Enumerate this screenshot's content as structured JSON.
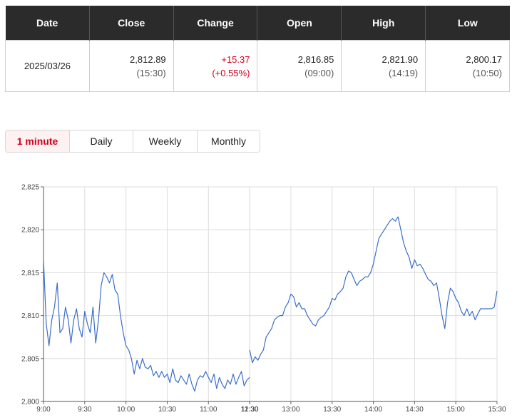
{
  "table": {
    "headers": [
      "Date",
      "Close",
      "Change",
      "Open",
      "High",
      "Low"
    ],
    "row": {
      "date": "2025/03/26",
      "close": "2,812.89",
      "close_time": "(15:30)",
      "change": "+15.37",
      "change_pct": "(+0.55%)",
      "open": "2,816.85",
      "open_time": "(09:00)",
      "high": "2,821.90",
      "high_time": "(14:19)",
      "low": "2,800.17",
      "low_time": "(10:50)"
    }
  },
  "tabs": [
    {
      "label": "1 minute",
      "active": true
    },
    {
      "label": "Daily",
      "active": false
    },
    {
      "label": "Weekly",
      "active": false
    },
    {
      "label": "Monthly",
      "active": false
    }
  ],
  "colors": {
    "accent": "#d6001c",
    "line": "#3b6fc9",
    "header_bg": "#2b2b2b",
    "grid": "#dddddd"
  },
  "chart_data": {
    "type": "line",
    "title": "",
    "xlabel": "",
    "ylabel": "",
    "x_ticks": [
      "9:00",
      "9:30",
      "10:00",
      "10:30",
      "11:00",
      "11:30",
      "12:30",
      "13:00",
      "13:30",
      "14:00",
      "14:30",
      "15:00",
      "15:30"
    ],
    "y_ticks": [
      "2,800",
      "2,805",
      "2,810",
      "2,815",
      "2,820",
      "2,825"
    ],
    "ylim": [
      2800,
      2825
    ],
    "grid": true,
    "legend": "none",
    "lunch_break": [
      "11:30",
      "12:30"
    ],
    "series": [
      {
        "points": [
          [
            "9:00",
            2816.5
          ],
          [
            "9:02",
            2809.0
          ],
          [
            "9:04",
            2806.5
          ],
          [
            "9:06",
            2809.5
          ],
          [
            "9:08",
            2811.0
          ],
          [
            "9:10",
            2813.8
          ],
          [
            "9:12",
            2808.0
          ],
          [
            "9:14",
            2808.5
          ],
          [
            "9:16",
            2811.0
          ],
          [
            "9:18",
            2809.5
          ],
          [
            "9:20",
            2806.8
          ],
          [
            "9:22",
            2809.5
          ],
          [
            "9:24",
            2810.8
          ],
          [
            "9:26",
            2808.5
          ],
          [
            "9:28",
            2807.5
          ],
          [
            "9:30",
            2810.5
          ],
          [
            "9:32",
            2809.0
          ],
          [
            "9:34",
            2808.0
          ],
          [
            "9:36",
            2811.0
          ],
          [
            "9:38",
            2806.8
          ],
          [
            "9:40",
            2809.5
          ],
          [
            "9:42",
            2813.5
          ],
          [
            "9:44",
            2815.0
          ],
          [
            "9:46",
            2814.5
          ],
          [
            "9:48",
            2813.8
          ],
          [
            "9:50",
            2814.8
          ],
          [
            "9:52",
            2813.0
          ],
          [
            "9:54",
            2812.5
          ],
          [
            "9:56",
            2810.0
          ],
          [
            "9:58",
            2808.0
          ],
          [
            "10:00",
            2806.5
          ],
          [
            "10:02",
            2806.0
          ],
          [
            "10:04",
            2805.0
          ],
          [
            "10:06",
            2803.2
          ],
          [
            "10:08",
            2804.8
          ],
          [
            "10:10",
            2803.8
          ],
          [
            "10:12",
            2805.0
          ],
          [
            "10:14",
            2804.0
          ],
          [
            "10:16",
            2803.8
          ],
          [
            "10:18",
            2804.2
          ],
          [
            "10:20",
            2803.0
          ],
          [
            "10:22",
            2803.5
          ],
          [
            "10:24",
            2802.8
          ],
          [
            "10:26",
            2803.5
          ],
          [
            "10:28",
            2802.8
          ],
          [
            "10:30",
            2803.2
          ],
          [
            "10:32",
            2802.2
          ],
          [
            "10:34",
            2803.8
          ],
          [
            "10:36",
            2802.5
          ],
          [
            "10:38",
            2802.2
          ],
          [
            "10:40",
            2803.0
          ],
          [
            "10:42",
            2802.5
          ],
          [
            "10:44",
            2802.0
          ],
          [
            "10:46",
            2803.2
          ],
          [
            "10:48",
            2802.0
          ],
          [
            "10:50",
            2801.2
          ],
          [
            "10:52",
            2802.5
          ],
          [
            "10:54",
            2803.0
          ],
          [
            "10:56",
            2802.8
          ],
          [
            "10:58",
            2803.5
          ],
          [
            "11:00",
            2802.8
          ],
          [
            "11:02",
            2802.2
          ],
          [
            "11:04",
            2803.2
          ],
          [
            "11:06",
            2801.5
          ],
          [
            "11:08",
            2802.8
          ],
          [
            "11:10",
            2802.0
          ],
          [
            "11:12",
            2801.5
          ],
          [
            "11:14",
            2802.5
          ],
          [
            "11:16",
            2802.0
          ],
          [
            "11:18",
            2803.2
          ],
          [
            "11:20",
            2802.0
          ],
          [
            "11:22",
            2802.8
          ],
          [
            "11:24",
            2803.5
          ],
          [
            "11:26",
            2801.8
          ],
          [
            "11:28",
            2802.5
          ],
          [
            "11:30",
            2802.8
          ],
          [
            "12:30",
            2806.0
          ],
          [
            "12:32",
            2804.5
          ],
          [
            "12:34",
            2805.2
          ],
          [
            "12:36",
            2804.8
          ],
          [
            "12:38",
            2805.5
          ],
          [
            "12:40",
            2806.0
          ],
          [
            "12:42",
            2807.5
          ],
          [
            "12:44",
            2808.0
          ],
          [
            "12:46",
            2808.5
          ],
          [
            "12:48",
            2809.5
          ],
          [
            "12:50",
            2809.8
          ],
          [
            "12:52",
            2810.0
          ],
          [
            "12:54",
            2810.0
          ],
          [
            "12:56",
            2811.0
          ],
          [
            "12:58",
            2811.5
          ],
          [
            "13:00",
            2812.5
          ],
          [
            "13:02",
            2812.2
          ],
          [
            "13:04",
            2811.0
          ],
          [
            "13:06",
            2811.5
          ],
          [
            "13:08",
            2810.8
          ],
          [
            "13:10",
            2810.8
          ],
          [
            "13:12",
            2810.0
          ],
          [
            "13:14",
            2809.5
          ],
          [
            "13:16",
            2809.0
          ],
          [
            "13:18",
            2808.8
          ],
          [
            "13:20",
            2809.5
          ],
          [
            "13:22",
            2809.8
          ],
          [
            "13:24",
            2810.0
          ],
          [
            "13:26",
            2810.5
          ],
          [
            "13:28",
            2811.0
          ],
          [
            "13:30",
            2812.0
          ],
          [
            "13:32",
            2811.8
          ],
          [
            "13:34",
            2812.5
          ],
          [
            "13:36",
            2812.8
          ],
          [
            "13:38",
            2813.2
          ],
          [
            "13:40",
            2814.5
          ],
          [
            "13:42",
            2815.2
          ],
          [
            "13:44",
            2815.0
          ],
          [
            "13:46",
            2814.2
          ],
          [
            "13:48",
            2813.5
          ],
          [
            "13:50",
            2814.0
          ],
          [
            "13:52",
            2814.2
          ],
          [
            "13:54",
            2814.5
          ],
          [
            "13:56",
            2814.5
          ],
          [
            "13:58",
            2815.0
          ],
          [
            "14:00",
            2816.0
          ],
          [
            "14:02",
            2817.5
          ],
          [
            "14:04",
            2819.0
          ],
          [
            "14:06",
            2819.5
          ],
          [
            "14:08",
            2820.0
          ],
          [
            "14:10",
            2820.5
          ],
          [
            "14:12",
            2821.0
          ],
          [
            "14:14",
            2821.3
          ],
          [
            "14:16",
            2821.0
          ],
          [
            "14:18",
            2821.5
          ],
          [
            "14:20",
            2820.0
          ],
          [
            "14:22",
            2818.5
          ],
          [
            "14:24",
            2817.5
          ],
          [
            "14:26",
            2816.8
          ],
          [
            "14:28",
            2815.5
          ],
          [
            "14:30",
            2816.5
          ],
          [
            "14:32",
            2815.8
          ],
          [
            "14:34",
            2816.0
          ],
          [
            "14:36",
            2815.5
          ],
          [
            "14:38",
            2814.8
          ],
          [
            "14:40",
            2814.2
          ],
          [
            "14:42",
            2814.0
          ],
          [
            "14:44",
            2813.5
          ],
          [
            "14:46",
            2813.8
          ],
          [
            "14:48",
            2812.0
          ],
          [
            "14:50",
            2810.0
          ],
          [
            "14:52",
            2808.5
          ],
          [
            "14:54",
            2811.5
          ],
          [
            "14:56",
            2813.2
          ],
          [
            "14:58",
            2812.8
          ],
          [
            "15:00",
            2812.0
          ],
          [
            "15:02",
            2811.5
          ],
          [
            "15:04",
            2810.5
          ],
          [
            "15:06",
            2810.0
          ],
          [
            "15:08",
            2810.8
          ],
          [
            "15:10",
            2810.0
          ],
          [
            "15:12",
            2810.5
          ],
          [
            "15:14",
            2809.5
          ],
          [
            "15:16",
            2810.2
          ],
          [
            "15:18",
            2810.8
          ],
          [
            "15:20",
            2810.8
          ],
          [
            "15:22",
            2810.8
          ],
          [
            "15:24",
            2810.8
          ],
          [
            "15:26",
            2810.8
          ],
          [
            "15:28",
            2811.0
          ],
          [
            "15:30",
            2812.89
          ]
        ]
      }
    ]
  }
}
